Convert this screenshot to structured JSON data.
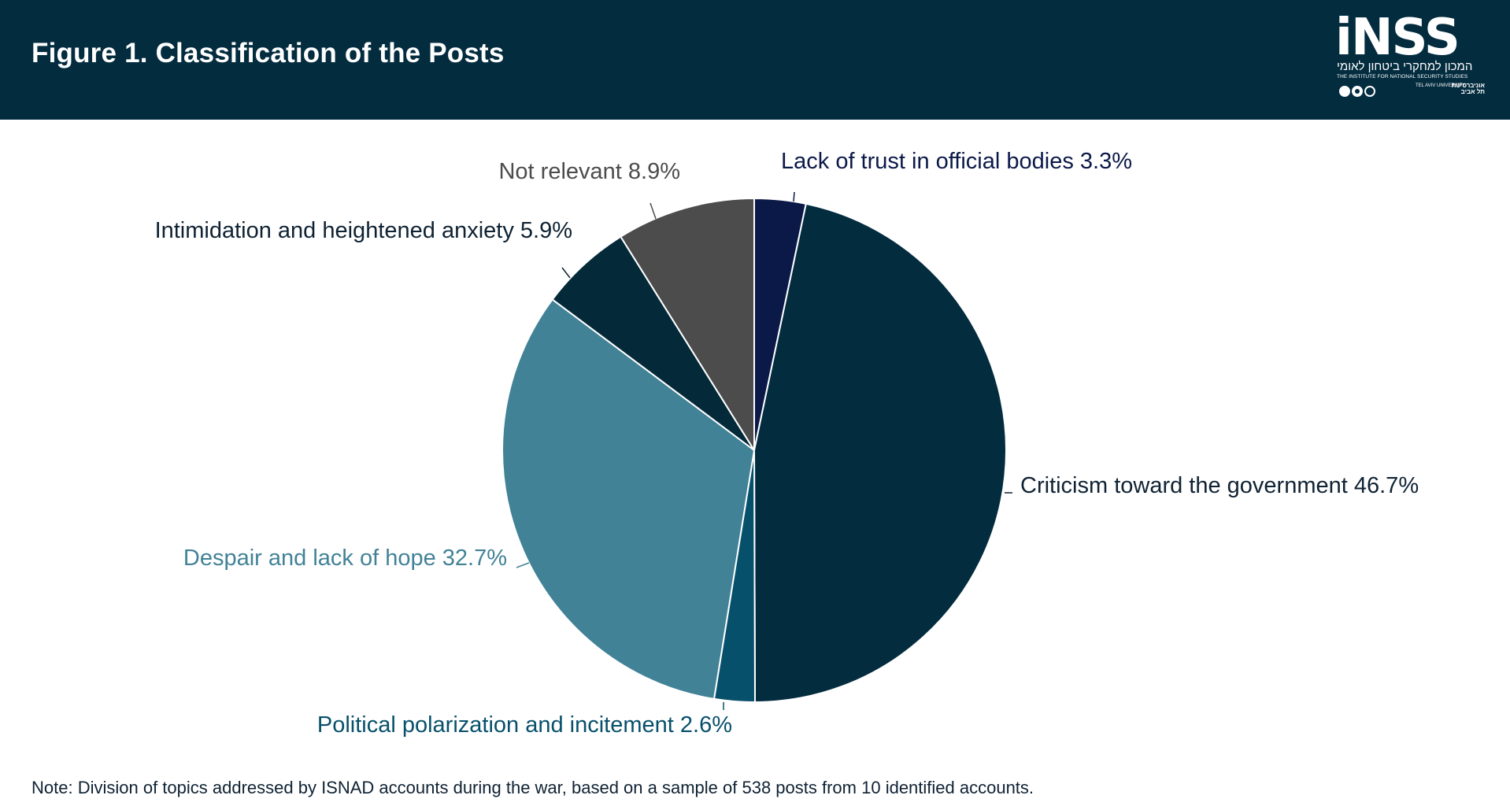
{
  "header": {
    "title": "Figure 1. Classification of the Posts",
    "background_color": "#032c3f"
  },
  "logo": {
    "name": "iNSS",
    "hebrew": "המכון למחקרי ביטחון לאומי",
    "subtitle": "THE INSTITUTE FOR NATIONAL SECURITY STUDIES",
    "university_en": "TEL AVIV UNIVERSITY",
    "university_he": "אוניברסיטת תל אביב"
  },
  "chart_data": {
    "type": "pie",
    "title": "Classification of the Posts",
    "unit": "%",
    "start": "12 o'clock, clockwise",
    "slices": [
      {
        "label": "Lack of trust in official bodies",
        "value": 3.3,
        "display": "3.3%",
        "color": "#0b1948",
        "label_color": "#0b1948"
      },
      {
        "label": "Criticism toward the government",
        "value": 46.7,
        "display": "46.7%",
        "color": "#032c3f",
        "label_color": "#0f2233"
      },
      {
        "label": "Political polarization and incitement",
        "value": 2.6,
        "display": "2.6%",
        "color": "#07506b",
        "label_color": "#07506b"
      },
      {
        "label": "Despair and lack of hope",
        "value": 32.7,
        "display": "32.7%",
        "color": "#428297",
        "label_color": "#428297"
      },
      {
        "label": "Intimidation and heightened anxiety",
        "value": 5.9,
        "display": "5.9%",
        "color": "#042a3a",
        "label_color": "#0f2233"
      },
      {
        "label": "Not relevant",
        "value": 8.9,
        "display": "8.9%",
        "color": "#4d4c4d",
        "label_color": "#4d4c4d"
      }
    ]
  },
  "note": "Note: Division of topics addressed by ISNAD accounts during the war, based on a sample of 538 posts from 10 identified accounts."
}
